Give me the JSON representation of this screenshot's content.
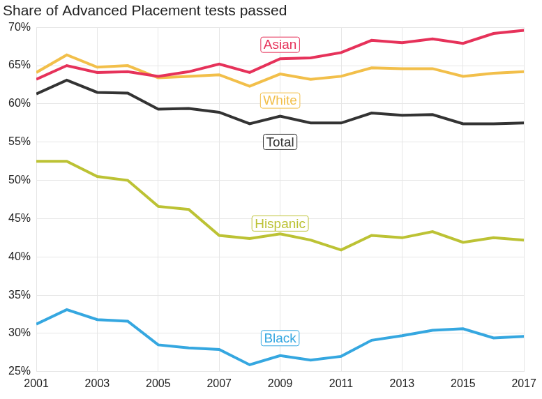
{
  "chart_data": {
    "type": "line",
    "title": "Share of Advanced Placement tests passed",
    "x": [
      2001,
      2002,
      2003,
      2004,
      2005,
      2006,
      2007,
      2008,
      2009,
      2010,
      2011,
      2012,
      2013,
      2014,
      2015,
      2016,
      2017
    ],
    "xlim": [
      2001,
      2017
    ],
    "xticks": [
      2001,
      2003,
      2005,
      2007,
      2009,
      2011,
      2013,
      2015,
      2017
    ],
    "ylim": [
      25,
      70
    ],
    "yticks": [
      {
        "value": 25,
        "label": "25%"
      },
      {
        "value": 30,
        "label": "30%"
      },
      {
        "value": 35,
        "label": "35%"
      },
      {
        "value": 40,
        "label": "40%"
      },
      {
        "value": 45,
        "label": "45%"
      },
      {
        "value": 50,
        "label": "50%"
      },
      {
        "value": 55,
        "label": "55%"
      },
      {
        "value": 60,
        "label": "60%"
      },
      {
        "value": 65,
        "label": "65%"
      },
      {
        "value": 70,
        "label": "70%"
      }
    ],
    "grid": true,
    "series": [
      {
        "name": "Asian",
        "color": "#e6325a",
        "values": [
          63.2,
          65.0,
          64.1,
          64.2,
          63.6,
          64.2,
          65.2,
          64.1,
          65.9,
          66.0,
          66.7,
          68.3,
          68.0,
          68.5,
          67.9,
          69.2,
          69.6
        ]
      },
      {
        "name": "White",
        "color": "#f2bf4a",
        "values": [
          64.1,
          66.4,
          64.8,
          65.0,
          63.4,
          63.6,
          63.8,
          62.3,
          63.9,
          63.2,
          63.6,
          64.7,
          64.6,
          64.6,
          63.6,
          64.0,
          64.2
        ]
      },
      {
        "name": "Total",
        "color": "#333333",
        "values": [
          61.3,
          63.1,
          61.5,
          61.4,
          59.3,
          59.4,
          58.9,
          57.4,
          58.4,
          57.5,
          57.5,
          58.8,
          58.5,
          58.6,
          57.4,
          57.4,
          57.5
        ]
      },
      {
        "name": "Hispanic",
        "color": "#bcc234",
        "values": [
          52.5,
          52.5,
          50.5,
          50.0,
          46.6,
          46.2,
          42.8,
          42.4,
          43.0,
          42.2,
          40.9,
          42.8,
          42.5,
          43.3,
          41.9,
          42.5,
          42.2
        ]
      },
      {
        "name": "Black",
        "color": "#35a7e0",
        "values": [
          31.2,
          33.1,
          31.8,
          31.6,
          28.5,
          28.1,
          27.9,
          25.9,
          27.1,
          26.5,
          27.0,
          29.1,
          29.7,
          30.4,
          30.6,
          29.4,
          29.6
        ]
      }
    ]
  }
}
